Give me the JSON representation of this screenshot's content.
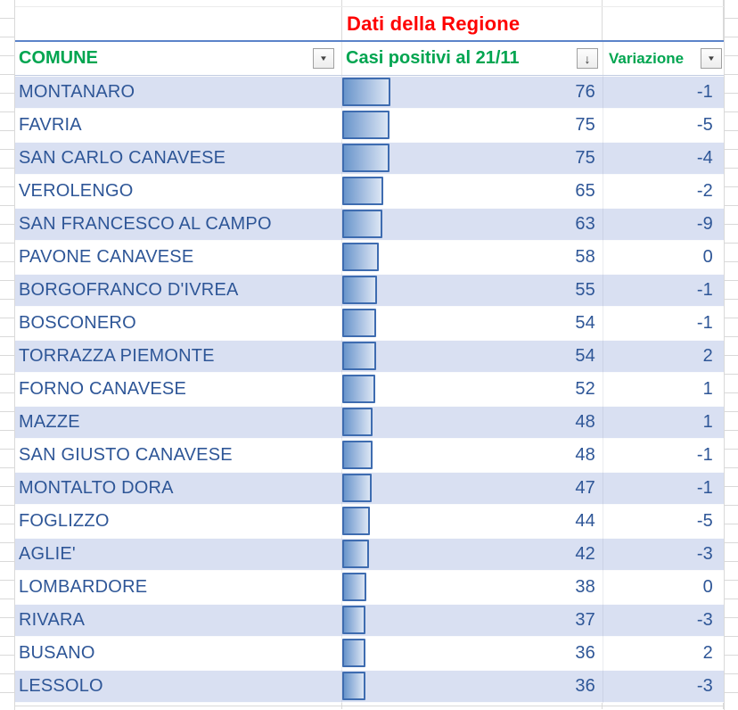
{
  "header": {
    "title": "Dati della Regione"
  },
  "columns": {
    "comune": "COMUNE",
    "casi": "Casi positivi al 21/11",
    "variazione": "Variazione"
  },
  "icons": {
    "filter_glyph": "▼",
    "sort_desc_glyph": "↓"
  },
  "colors": {
    "header_green": "#00a550",
    "title_red": "#fe0000",
    "row_text_blue": "#2e5697",
    "band_blue": "#d9e0f2",
    "bar_border": "#3e6cb0",
    "bar_fill_dark": "#6995cb",
    "bar_fill_light": "#dce6f4"
  },
  "rows": [
    {
      "comune": "MONTANARO",
      "casi": 76,
      "variazione": -1
    },
    {
      "comune": "FAVRIA",
      "casi": 75,
      "variazione": -5
    },
    {
      "comune": "SAN CARLO CANAVESE",
      "casi": 75,
      "variazione": -4
    },
    {
      "comune": "VEROLENGO",
      "casi": 65,
      "variazione": -2
    },
    {
      "comune": "SAN FRANCESCO AL CAMPO",
      "casi": 63,
      "variazione": -9
    },
    {
      "comune": "PAVONE CANAVESE",
      "casi": 58,
      "variazione": 0
    },
    {
      "comune": "BORGOFRANCO D'IVREA",
      "casi": 55,
      "variazione": -1
    },
    {
      "comune": "BOSCONERO",
      "casi": 54,
      "variazione": -1
    },
    {
      "comune": "TORRAZZA PIEMONTE",
      "casi": 54,
      "variazione": 2
    },
    {
      "comune": "FORNO CANAVESE",
      "casi": 52,
      "variazione": 1
    },
    {
      "comune": "MAZZE",
      "casi": 48,
      "variazione": 1
    },
    {
      "comune": "SAN GIUSTO CANAVESE",
      "casi": 48,
      "variazione": -1
    },
    {
      "comune": "MONTALTO DORA",
      "casi": 47,
      "variazione": -1
    },
    {
      "comune": "FOGLIZZO",
      "casi": 44,
      "variazione": -5
    },
    {
      "comune": "AGLIE'",
      "casi": 42,
      "variazione": -3
    },
    {
      "comune": "LOMBARDORE",
      "casi": 38,
      "variazione": 0
    },
    {
      "comune": "RIVARA",
      "casi": 37,
      "variazione": -3
    },
    {
      "comune": "BUSANO",
      "casi": 36,
      "variazione": 2
    },
    {
      "comune": "LESSOLO",
      "casi": 36,
      "variazione": -3
    }
  ]
}
